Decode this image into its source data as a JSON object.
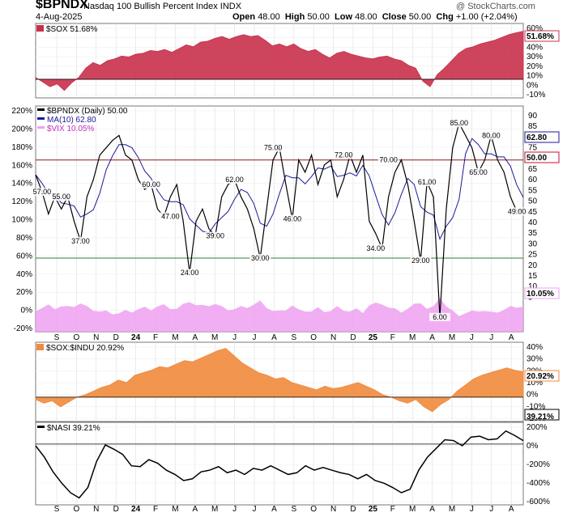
{
  "header": {
    "symbol": "$BPNDX",
    "title": "Nasdaq 100 Bullish Percent Index  INDX",
    "date": "4-Aug-2025",
    "open_label": "Open",
    "open": "48.00",
    "high_label": "High",
    "high": "50.00",
    "low_label": "Low",
    "low": "48.00",
    "close_label": "Close",
    "close": "50.00",
    "chg_label": "Chg",
    "chg": "+1.00 (+2.04%)",
    "watermark": "@ StockCharts.com"
  },
  "colors": {
    "sox": "#c8304a",
    "bpndx": "#000000",
    "ma": "#1a1a9a",
    "bpndx_red": "#c8102e",
    "vix": "#f0a0f0",
    "ratio": "#f08a3c",
    "nasi": "#000000",
    "hline_red": "#8b1a1a",
    "hline_green": "#2e7d32"
  },
  "x_labels": [
    "S",
    "O",
    "N",
    "D",
    "24",
    "F",
    "M",
    "A",
    "M",
    "J",
    "J",
    "A",
    "S",
    "O",
    "N",
    "D",
    "25",
    "F",
    "M",
    "A",
    "M",
    "J",
    "J",
    "A"
  ],
  "chart_data": [
    {
      "type": "area",
      "legend": "$SOX 51.68%",
      "last_label": "51.68%",
      "ylim": [
        -20,
        60
      ],
      "yticks": [
        "60%",
        "50%",
        "40%",
        "30%",
        "20%",
        "10%",
        "0%",
        "-10%"
      ],
      "y": [
        2,
        -3,
        -8,
        -5,
        -12,
        -4,
        2,
        12,
        18,
        15,
        20,
        22,
        25,
        24,
        27,
        28,
        31,
        30,
        32,
        29,
        33,
        37,
        35,
        40,
        41,
        44,
        46,
        43,
        46,
        48,
        46,
        47,
        42,
        36,
        38,
        35,
        38,
        33,
        30,
        32,
        27,
        23,
        28,
        30,
        27,
        25,
        23,
        22,
        24,
        25,
        22,
        20,
        15,
        12,
        -2,
        -8,
        5,
        12,
        20,
        28,
        33,
        35,
        38,
        40,
        42,
        45,
        48,
        50,
        51.68
      ]
    },
    {
      "type": "line",
      "legend": [
        "$BPNDX (Daily) 50.00",
        "MA(10) 62.80",
        "$VIX 10.05%"
      ],
      "left_yticks": [
        "220%",
        "200%",
        "180%",
        "160%",
        "140%",
        "120%",
        "100%",
        "80%",
        "60%",
        "40%",
        "20%",
        "0%",
        "-20%"
      ],
      "right_yticks": [
        "90",
        "85",
        "80",
        "75",
        "70",
        "65",
        "60",
        "55",
        "50",
        "45",
        "40",
        "35",
        "30",
        "25",
        "20",
        "15",
        "10",
        "5"
      ],
      "ylim": [
        0,
        92
      ],
      "series": [
        {
          "name": "$BPNDX (Daily)",
          "last": "50.00",
          "values": [
            64,
            57,
            48,
            55,
            50,
            55,
            45,
            37,
            55,
            62,
            72,
            75,
            78,
            80,
            72,
            70,
            62,
            58,
            60,
            50,
            47,
            55,
            60,
            45,
            24,
            45,
            50,
            42,
            39,
            55,
            60,
            62,
            55,
            50,
            42,
            30,
            50,
            70,
            75,
            60,
            46,
            70,
            65,
            72,
            60,
            68,
            70,
            55,
            62,
            72,
            65,
            72,
            45,
            40,
            34,
            55,
            65,
            70,
            60,
            45,
            29,
            61,
            55,
            6,
            50,
            75,
            85,
            80,
            75,
            65,
            70,
            80,
            70,
            65,
            55,
            49,
            50
          ]
        },
        {
          "name": "MA(10)",
          "last": "62.80"
        }
      ],
      "vix": {
        "name": "$VIX",
        "last": "10.05%"
      },
      "hlines": [
        70,
        30
      ],
      "annotations": [
        {
          "x": 1,
          "y": 57,
          "label": "57.00"
        },
        {
          "x": 7,
          "y": 37,
          "label": "37.00"
        },
        {
          "x": 4,
          "y": 55,
          "label": "55.00"
        },
        {
          "x": 18,
          "y": 60,
          "label": "60.00"
        },
        {
          "x": 21,
          "y": 47,
          "label": "47.00"
        },
        {
          "x": 24,
          "y": 24,
          "label": "24.00"
        },
        {
          "x": 28,
          "y": 39,
          "label": "39.00"
        },
        {
          "x": 31,
          "y": 62,
          "label": "62.00"
        },
        {
          "x": 35,
          "y": 30,
          "label": "30.00"
        },
        {
          "x": 37,
          "y": 75,
          "label": "75.00"
        },
        {
          "x": 40,
          "y": 46,
          "label": "46.00"
        },
        {
          "x": 48,
          "y": 72,
          "label": "72.00"
        },
        {
          "x": 53,
          "y": 34,
          "label": "34.00"
        },
        {
          "x": 55,
          "y": 70,
          "label": "70.00"
        },
        {
          "x": 60,
          "y": 29,
          "label": "29.00"
        },
        {
          "x": 61,
          "y": 61,
          "label": "61.00"
        },
        {
          "x": 63,
          "y": 6,
          "label": "6.00"
        },
        {
          "x": 66,
          "y": 85,
          "label": "85.00"
        },
        {
          "x": 69,
          "y": 65,
          "label": "65.00"
        },
        {
          "x": 71,
          "y": 80,
          "label": "80.00"
        },
        {
          "x": 75,
          "y": 49,
          "label": "49.00"
        }
      ],
      "right_boxes": [
        "62.80",
        "50.00",
        "10.05%"
      ]
    },
    {
      "type": "area",
      "legend": "$SOX:$INDU 20.92%",
      "last_label": "20.92%",
      "ylim": [
        -20,
        45
      ],
      "yticks": [
        "40%",
        "30%",
        "20%",
        "10%",
        "0%",
        "-10%",
        "-20%"
      ],
      "y": [
        -2,
        -5,
        -3,
        -8,
        -4,
        0,
        2,
        5,
        8,
        10,
        14,
        12,
        18,
        20,
        22,
        25,
        24,
        27,
        30,
        29,
        32,
        35,
        38,
        40,
        34,
        28,
        24,
        20,
        18,
        15,
        16,
        12,
        10,
        8,
        6,
        9,
        7,
        8,
        10,
        12,
        9,
        6,
        2,
        0,
        -3,
        -5,
        -2,
        -8,
        -12,
        -6,
        -2,
        5,
        10,
        15,
        18,
        20,
        22,
        24,
        22,
        20.92
      ]
    },
    {
      "type": "line",
      "legend": "$NASI 39.21%",
      "last_label": "39.21%",
      "ylim": [
        -700,
        250
      ],
      "yticks": [
        "200%",
        "0%",
        "-200%",
        "-400%",
        "-600%"
      ],
      "y": [
        -20,
        -150,
        -320,
        -450,
        -560,
        -620,
        -500,
        -200,
        -10,
        -60,
        -120,
        -250,
        -260,
        -180,
        -220,
        -300,
        -350,
        -420,
        -400,
        -320,
        -300,
        -260,
        -330,
        -300,
        -350,
        -280,
        -300,
        -250,
        -300,
        -350,
        -330,
        -250,
        -300,
        -270,
        -300,
        -330,
        -350,
        -400,
        -350,
        -420,
        -450,
        -500,
        -560,
        -520,
        -300,
        -150,
        -50,
        50,
        40,
        -20,
        80,
        90,
        50,
        60,
        150,
        100,
        39.21
      ]
    }
  ]
}
